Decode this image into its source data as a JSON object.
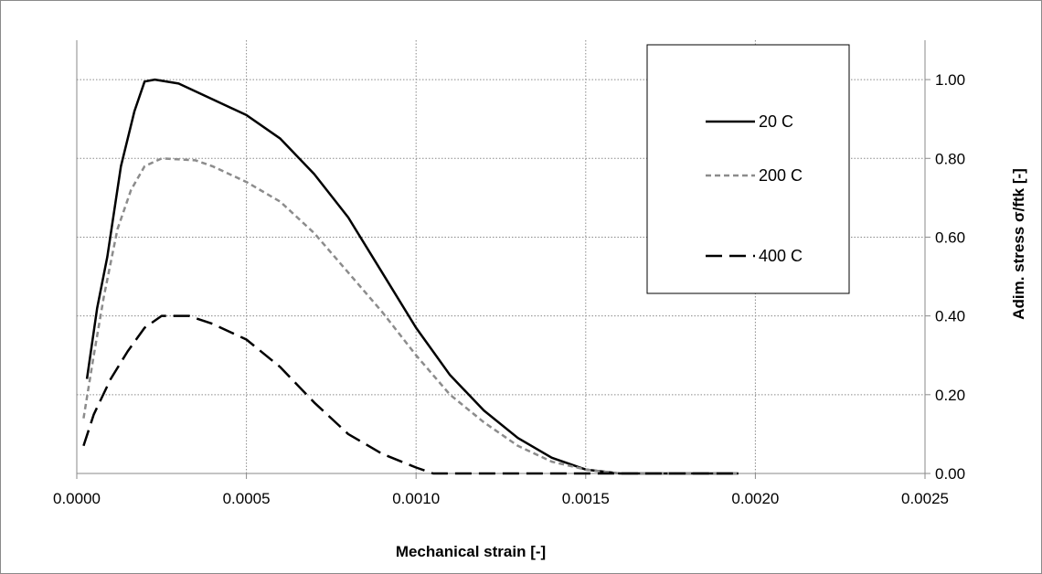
{
  "chart_data": {
    "type": "line",
    "title": "",
    "xlabel": "Mechanical strain [-]",
    "ylabel": "Adim. stress σ/ftk [-]",
    "xlim": [
      0,
      0.0025
    ],
    "ylim": [
      0,
      1.1
    ],
    "x_ticks": [
      "0.0000",
      "0.0005",
      "0.0010",
      "0.0015",
      "0.0020",
      "0.0025"
    ],
    "y_ticks": [
      "0.00",
      "0.20",
      "0.40",
      "0.60",
      "0.80",
      "1.00"
    ],
    "x_tick_values": [
      0,
      0.0005,
      0.001,
      0.0015,
      0.002,
      0.0025
    ],
    "y_tick_values": [
      0,
      0.2,
      0.4,
      0.6,
      0.8,
      1.0
    ],
    "y_axis_side": "right",
    "grid": true,
    "legend_position": "top-right",
    "series": [
      {
        "name": "20 C",
        "color": "#000000",
        "dash": "solid",
        "points": [
          [
            3e-05,
            0.24
          ],
          [
            6e-05,
            0.42
          ],
          [
            9e-05,
            0.55
          ],
          [
            0.00013,
            0.78
          ],
          [
            0.00017,
            0.92
          ],
          [
            0.0002,
            0.995
          ],
          [
            0.00023,
            1.0
          ],
          [
            0.0003,
            0.99
          ],
          [
            0.0004,
            0.95
          ],
          [
            0.0005,
            0.91
          ],
          [
            0.0006,
            0.85
          ],
          [
            0.0007,
            0.76
          ],
          [
            0.0008,
            0.65
          ],
          [
            0.0009,
            0.51
          ],
          [
            0.001,
            0.37
          ],
          [
            0.0011,
            0.25
          ],
          [
            0.0012,
            0.16
          ],
          [
            0.0013,
            0.09
          ],
          [
            0.0014,
            0.04
          ],
          [
            0.0015,
            0.01
          ],
          [
            0.0016,
            0.0
          ],
          [
            0.00195,
            0.0
          ]
        ]
      },
      {
        "name": "200 C",
        "color": "#8c8c8c",
        "dash": "short",
        "points": [
          [
            2e-05,
            0.14
          ],
          [
            5e-05,
            0.3
          ],
          [
            8e-05,
            0.45
          ],
          [
            0.00012,
            0.62
          ],
          [
            0.00016,
            0.72
          ],
          [
            0.0002,
            0.78
          ],
          [
            0.00025,
            0.8
          ],
          [
            0.00035,
            0.795
          ],
          [
            0.0004,
            0.78
          ],
          [
            0.0005,
            0.74
          ],
          [
            0.0006,
            0.69
          ],
          [
            0.0007,
            0.61
          ],
          [
            0.0008,
            0.51
          ],
          [
            0.0009,
            0.41
          ],
          [
            0.001,
            0.3
          ],
          [
            0.0011,
            0.2
          ],
          [
            0.0012,
            0.13
          ],
          [
            0.0013,
            0.07
          ],
          [
            0.0014,
            0.03
          ],
          [
            0.0015,
            0.01
          ],
          [
            0.0016,
            0.0
          ],
          [
            0.00195,
            0.0
          ]
        ]
      },
      {
        "name": "400 C",
        "color": "#000000",
        "dash": "long",
        "points": [
          [
            2e-05,
            0.07
          ],
          [
            5e-05,
            0.15
          ],
          [
            0.0001,
            0.24
          ],
          [
            0.00015,
            0.31
          ],
          [
            0.0002,
            0.37
          ],
          [
            0.00025,
            0.4
          ],
          [
            0.00033,
            0.4
          ],
          [
            0.0004,
            0.38
          ],
          [
            0.0005,
            0.34
          ],
          [
            0.0006,
            0.27
          ],
          [
            0.0007,
            0.18
          ],
          [
            0.0008,
            0.1
          ],
          [
            0.0009,
            0.05
          ],
          [
            0.001,
            0.015
          ],
          [
            0.00105,
            0.0
          ],
          [
            0.0013,
            0.0
          ],
          [
            0.00195,
            0.0
          ]
        ]
      }
    ]
  }
}
